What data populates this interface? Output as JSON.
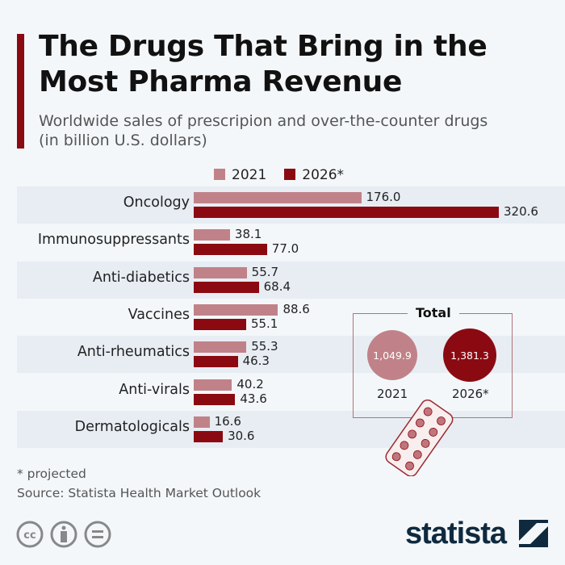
{
  "title_line1": "The Drugs That Bring in the",
  "title_line2": "Most Pharma Revenue",
  "subtitle_line1": "Worldwide sales of prescripion and over-the-counter drugs",
  "subtitle_line2": "(in billion U.S. dollars)",
  "colors": {
    "2021": "#c08288",
    "2026": "#8b0a12",
    "accent": "#8b0a12"
  },
  "chart_data": {
    "type": "bar",
    "orientation": "horizontal",
    "title": "The Drugs That Bring in the Most Pharma Revenue",
    "subtitle": "Worldwide sales of prescripion and over-the-counter drugs (in billion U.S. dollars)",
    "categories": [
      "Oncology",
      "Immunosuppressants",
      "Anti-diabetics",
      "Vaccines",
      "Anti-rheumatics",
      "Anti-virals",
      "Dermatologicals"
    ],
    "series": [
      {
        "name": "2021",
        "values": [
          176.0,
          38.1,
          55.7,
          88.6,
          55.3,
          40.2,
          16.6
        ]
      },
      {
        "name": "2026*",
        "values": [
          320.6,
          77.0,
          68.4,
          55.1,
          46.3,
          43.6,
          30.6
        ]
      }
    ],
    "legend": "top",
    "xlim": [
      0,
      320.6
    ],
    "totals": {
      "label": "Total",
      "items": [
        {
          "year": "2021",
          "value": "1,049.9"
        },
        {
          "year": "2026*",
          "value": "1,381.3"
        }
      ]
    }
  },
  "footnote": "* projected",
  "source": "Source: Statista Health Market Outlook",
  "logo": "statista"
}
